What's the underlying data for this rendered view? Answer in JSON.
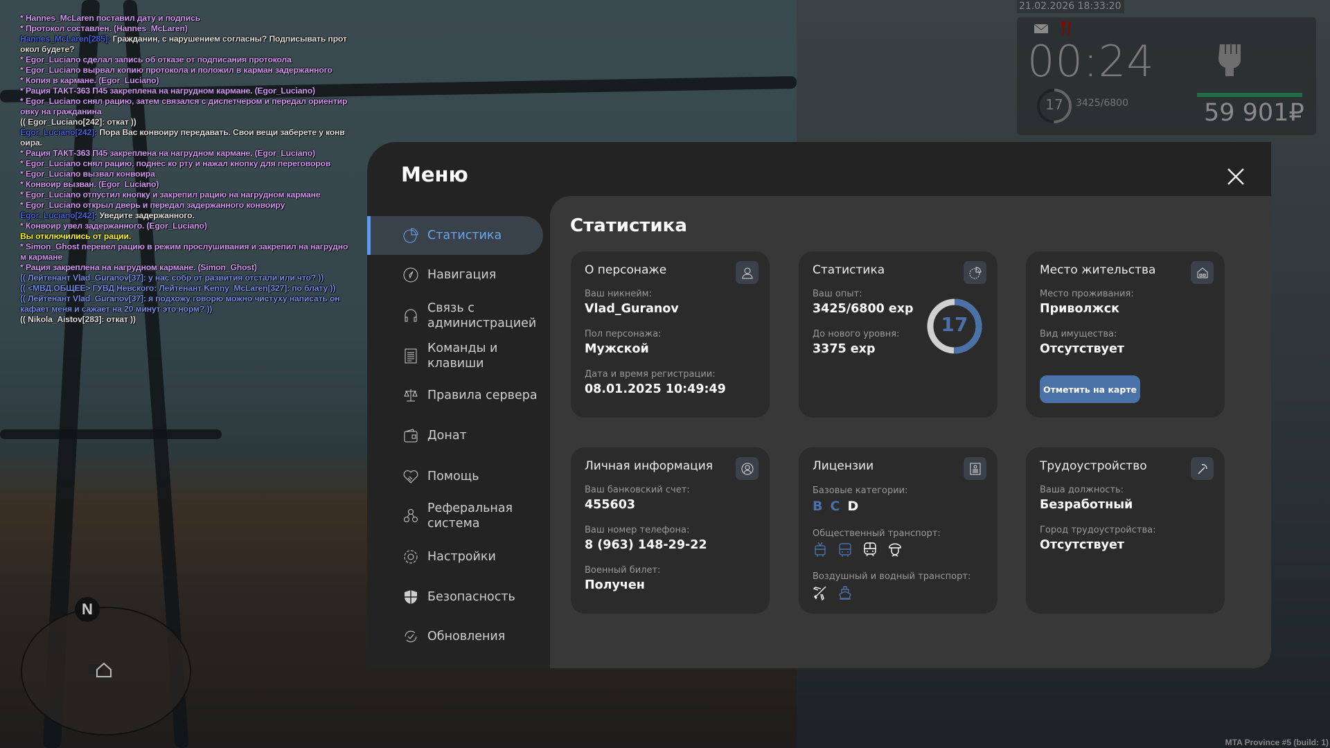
{
  "chat": [
    [
      {
        "t": "* Hannes_McLaren поставил дату и подпись",
        "c": "purple"
      }
    ],
    [
      {
        "t": "* Протокол составлен. (Hannes_McLaren)",
        "c": "purple"
      }
    ],
    [
      {
        "t": "Hannes_McLaren[285]: ",
        "c": "blue"
      },
      {
        "t": "Гражданин, с нарушением согласны? Подписывать прот",
        "c": "white"
      }
    ],
    [
      {
        "t": "окол будете?",
        "c": "white"
      }
    ],
    [
      {
        "t": "* Egor_Luciano сделал запись об отказе от подписания протокола",
        "c": "purple"
      }
    ],
    [
      {
        "t": "* Egor_Luciano вырвал копию протокола и положил в карман задержанного",
        "c": "purple"
      }
    ],
    [
      {
        "t": "* Копия в кармане. (Egor_Luciano)",
        "c": "purple"
      }
    ],
    [
      {
        "t": "* Рация ТАКТ-363 П45 закреплена на нагрудном кармане. (Egor_Luciano)",
        "c": "purple"
      }
    ],
    [
      {
        "t": "* Egor_Luciano снял рацию, затем связался с диспетчером и передал ориентир",
        "c": "purple"
      }
    ],
    [
      {
        "t": "овку на гражданина",
        "c": "purple"
      }
    ],
    [
      {
        "t": "(( Egor_Luciano[242]: откат ))",
        "c": "white"
      }
    ],
    [
      {
        "t": "Egor_Luciano[242]: ",
        "c": "blue"
      },
      {
        "t": "Пора Вас конвоиру передавать. Свои вещи заберете у конв",
        "c": "white"
      }
    ],
    [
      {
        "t": "оира.",
        "c": "white"
      }
    ],
    [
      {
        "t": "* Рация ТАКТ-363 П45 закреплена на нагрудном кармане. (Egor_Luciano)",
        "c": "purple"
      }
    ],
    [
      {
        "t": "* Egor_Luciano снял рацию, поднёс ко рту и нажал кнопку для переговоров",
        "c": "purple"
      }
    ],
    [
      {
        "t": "* Egor_Luciano вызвал конвоира",
        "c": "purple"
      }
    ],
    [
      {
        "t": "* Конвоир вызван. (Egor_Luciano)",
        "c": "purple"
      }
    ],
    [
      {
        "t": "* Egor_Luciano отпустил кнопку и закрепил рацию на нагрудном кармане",
        "c": "purple"
      }
    ],
    [
      {
        "t": "* Egor_Luciano открыл дверь и передал задержанного конвоиру",
        "c": "purple"
      }
    ],
    [
      {
        "t": "Egor_Luciano[242]: ",
        "c": "blue"
      },
      {
        "t": "Уведите задержанного.",
        "c": "white"
      }
    ],
    [
      {
        "t": "* Конвоир увел задержанного. (Egor_Luciano)",
        "c": "purple"
      }
    ],
    [
      {
        "t": "Вы отключились от рации.",
        "c": "yellow"
      }
    ],
    [
      {
        "t": "* Simon_Ghost перевел рацию в режим прослушивания и закрепил на нагрудно",
        "c": "purple"
      }
    ],
    [
      {
        "t": "м кармане",
        "c": "purple"
      }
    ],
    [
      {
        "t": "* Рация закреплена на нагрудном кармане. (Simon_Ghost)",
        "c": "purple"
      }
    ],
    [
      {
        "t": "(( Лейтенант Vlad_Guranov[37]: у нас собр от развития отстали или что? ))",
        "c": "ooc"
      }
    ],
    [
      {
        "t": "(( <МВД.ОБЩЕЕ> ГУВД Невского: Лейтенант Kenny_McLaren[327]: по блату ))",
        "c": "ooc"
      }
    ],
    [
      {
        "t": "(( Лейтенант Vlad_Guranov[37]: я подхожу говорю можно чистуху написать он",
        "c": "ooc"
      }
    ],
    [
      {
        "t": "кафает меня и сажает на 20 минут это норм? ))",
        "c": "ooc"
      }
    ],
    [
      {
        "t": "(( Nikola_Aistov[283]: откат ))",
        "c": "white"
      }
    ]
  ],
  "chat_colors": {
    "purple": "#d39af5",
    "blue": "#3f63d8",
    "white": "#e2e2e2",
    "yellow": "#ffff00",
    "ooc": "#6f8ee6"
  },
  "hud": {
    "datetime": "21.02.2026 18:33:20",
    "time": "00:24",
    "level": "17",
    "exp": "3425/6800",
    "exp_fraction": 0.504,
    "money": "59 901₽",
    "health_color": "#1f6b45",
    "icons": [
      "mail-icon",
      "hunger-icon",
      "fist-icon"
    ]
  },
  "menu": {
    "title": "Меню",
    "sidebar": [
      {
        "label": "Статистика",
        "icon": "pie-chart-icon",
        "active": true
      },
      {
        "label": "Навигация",
        "icon": "compass-icon"
      },
      {
        "label": "Связь с\nадминистрацией",
        "icon": "headset-icon"
      },
      {
        "label": "Команды и\nклавиши",
        "icon": "document-icon"
      },
      {
        "label": "Правила сервера",
        "icon": "scales-icon"
      },
      {
        "label": "Донат",
        "icon": "wallet-icon"
      },
      {
        "label": "Помощь",
        "icon": "handshake-heart-icon"
      },
      {
        "label": "Реферальная\nсистема",
        "icon": "referral-icon"
      },
      {
        "label": "Настройки",
        "icon": "gear-icon"
      },
      {
        "label": "Безопасность",
        "icon": "shield-icon"
      },
      {
        "label": "Обновления",
        "icon": "refresh-check-icon"
      }
    ],
    "accent": "#5b9cf0"
  },
  "content": {
    "title": "Статистика",
    "character": {
      "title": "О персонаже",
      "fields": [
        {
          "label": "Ваш никнейм:",
          "value": "Vlad_Guranov"
        },
        {
          "label": "Пол персонажа:",
          "value": "Мужской"
        },
        {
          "label": "Дата и время регистрации:",
          "value": "08.01.2025 10:49:49"
        }
      ]
    },
    "stats": {
      "title": "Статистика",
      "fields": [
        {
          "label": "Ваш опыт:",
          "value": "3425/6800 exp"
        },
        {
          "label": "До нового уровня:",
          "value": "3375 exp"
        }
      ],
      "level": "17",
      "progress": 0.504
    },
    "residence": {
      "title": "Место жительства",
      "fields": [
        {
          "label": "Место проживания:",
          "value": "Приволжск"
        },
        {
          "label": "Вид имущества:",
          "value": "Отсутствует"
        }
      ],
      "button": "Отметить на карте"
    },
    "personal": {
      "title": "Личная информация",
      "fields": [
        {
          "label": "Ваш банковский счет:",
          "value": "455603"
        },
        {
          "label": "Ваш номер телефона:",
          "value": "8 (963) 148-29-22"
        },
        {
          "label": "Военный билет:",
          "value": "Получен"
        }
      ]
    },
    "licenses": {
      "title": "Лицензии",
      "base_label": "Базовые категории:",
      "categories": [
        {
          "name": "B",
          "owned": true
        },
        {
          "name": "C",
          "owned": true
        },
        {
          "name": "D",
          "owned": false
        }
      ],
      "public_label": "Общественный транспорт:",
      "public": [
        {
          "icon": "trolleybus-icon",
          "owned": true
        },
        {
          "icon": "bus-icon",
          "owned": true
        },
        {
          "icon": "train-icon",
          "owned": false
        },
        {
          "icon": "conductor-icon",
          "owned": false
        }
      ],
      "air_label": "Воздушный и водный транспорт:",
      "air": [
        {
          "icon": "plane-icon",
          "owned": false
        },
        {
          "icon": "ship-icon",
          "owned": true
        }
      ]
    },
    "job": {
      "title": "Трудоустройство",
      "fields": [
        {
          "label": "Ваша должность:",
          "value": "Безработный"
        },
        {
          "label": "Город трудоустройства:",
          "value": "Отсутствует"
        }
      ]
    }
  },
  "minimap": {
    "north": "N"
  },
  "build": "MTA Province #5 (build: 1)"
}
